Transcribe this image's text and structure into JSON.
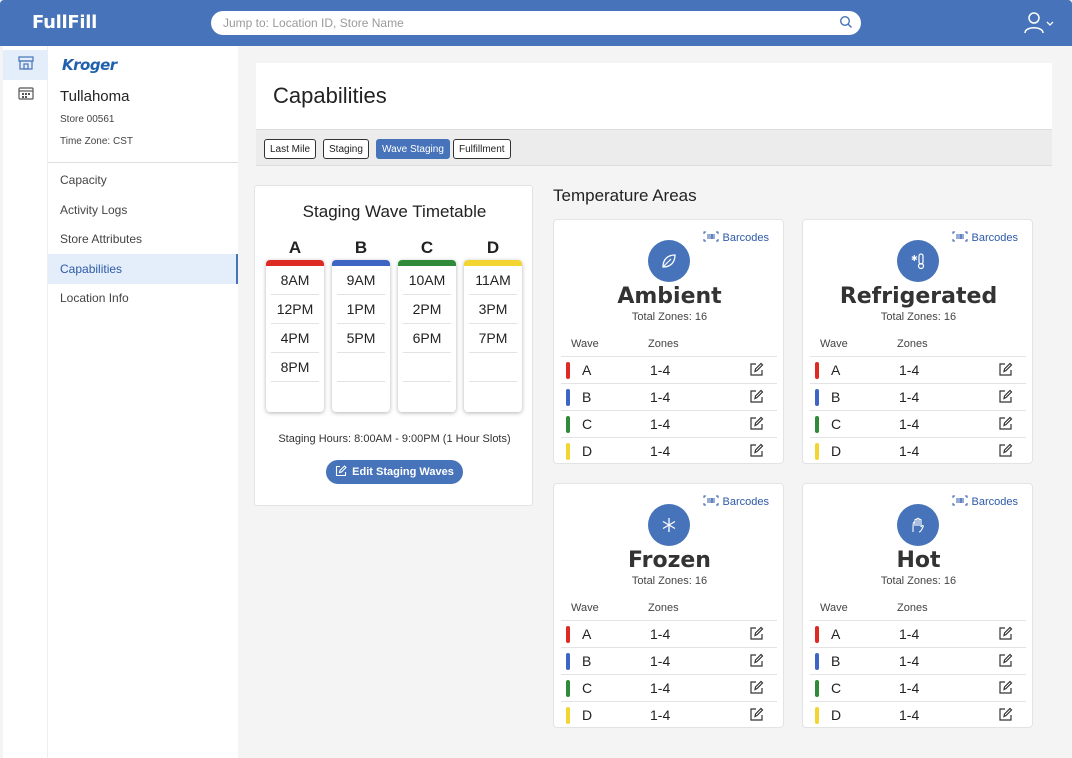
{
  "app": {
    "brand": "FullFill"
  },
  "search": {
    "placeholder": "Jump to: Location ID, Store Name"
  },
  "icons": {
    "rail": [
      "store-icon",
      "calendar-icon"
    ],
    "search": "search-icon",
    "user": "user-icon"
  },
  "store": {
    "logo": "Kroger",
    "name": "Tullahoma",
    "number": "Store 00561",
    "timezone": "Time Zone: CST"
  },
  "nav": [
    {
      "label": "Capacity",
      "active": false
    },
    {
      "label": "Activity Logs",
      "active": false
    },
    {
      "label": "Store Attributes",
      "active": false
    },
    {
      "label": "Capabilities",
      "active": true
    },
    {
      "label": "Location Info",
      "active": false
    }
  ],
  "page": {
    "title": "Capabilities"
  },
  "tabs": [
    {
      "label": "Last Mile",
      "active": false
    },
    {
      "label": "Staging",
      "active": false
    },
    {
      "label": "Wave Staging",
      "active": true
    },
    {
      "label": "Fulfillment",
      "active": false
    }
  ],
  "colors": {
    "primary": "#4673b9",
    "A": "#dd2a22",
    "B": "#3e64c4",
    "C": "#2f8a3a",
    "D": "#f2d530"
  },
  "timetable": {
    "title": "Staging Wave Timetable",
    "waves": [
      {
        "letter": "A",
        "times": [
          "8AM",
          "12PM",
          "4PM",
          "8PM"
        ]
      },
      {
        "letter": "B",
        "times": [
          "9AM",
          "1PM",
          "5PM"
        ]
      },
      {
        "letter": "C",
        "times": [
          "10AM",
          "2PM",
          "6PM"
        ]
      },
      {
        "letter": "D",
        "times": [
          "11AM",
          "3PM",
          "7PM"
        ]
      }
    ],
    "hours": "Staging Hours: 8:00AM - 9:00PM (1 Hour Slots)",
    "edit_label": "Edit Staging Waves"
  },
  "temperature": {
    "title": "Temperature Areas",
    "barcodes_label": "Barcodes",
    "wave_header": "Wave",
    "zones_header": "Zones",
    "areas": [
      {
        "name": "Ambient",
        "icon": "leaf-icon",
        "total": "Total Zones: 16",
        "rows": [
          {
            "wave": "A",
            "zones": "1-4"
          },
          {
            "wave": "B",
            "zones": "1-4"
          },
          {
            "wave": "C",
            "zones": "1-4"
          },
          {
            "wave": "D",
            "zones": "1-4"
          }
        ]
      },
      {
        "name": "Refrigerated",
        "icon": "thermometer-icon",
        "total": "Total Zones: 16",
        "rows": [
          {
            "wave": "A",
            "zones": "1-4"
          },
          {
            "wave": "B",
            "zones": "1-4"
          },
          {
            "wave": "C",
            "zones": "1-4"
          },
          {
            "wave": "D",
            "zones": "1-4"
          }
        ]
      },
      {
        "name": "Frozen",
        "icon": "snowflake-icon",
        "total": "Total Zones: 16",
        "rows": [
          {
            "wave": "A",
            "zones": "1-4"
          },
          {
            "wave": "B",
            "zones": "1-4"
          },
          {
            "wave": "C",
            "zones": "1-4"
          },
          {
            "wave": "D",
            "zones": "1-4"
          }
        ]
      },
      {
        "name": "Hot",
        "icon": "heat-icon",
        "total": "Total Zones: 16",
        "rows": [
          {
            "wave": "A",
            "zones": "1-4"
          },
          {
            "wave": "B",
            "zones": "1-4"
          },
          {
            "wave": "C",
            "zones": "1-4"
          },
          {
            "wave": "D",
            "zones": "1-4"
          }
        ]
      }
    ]
  }
}
